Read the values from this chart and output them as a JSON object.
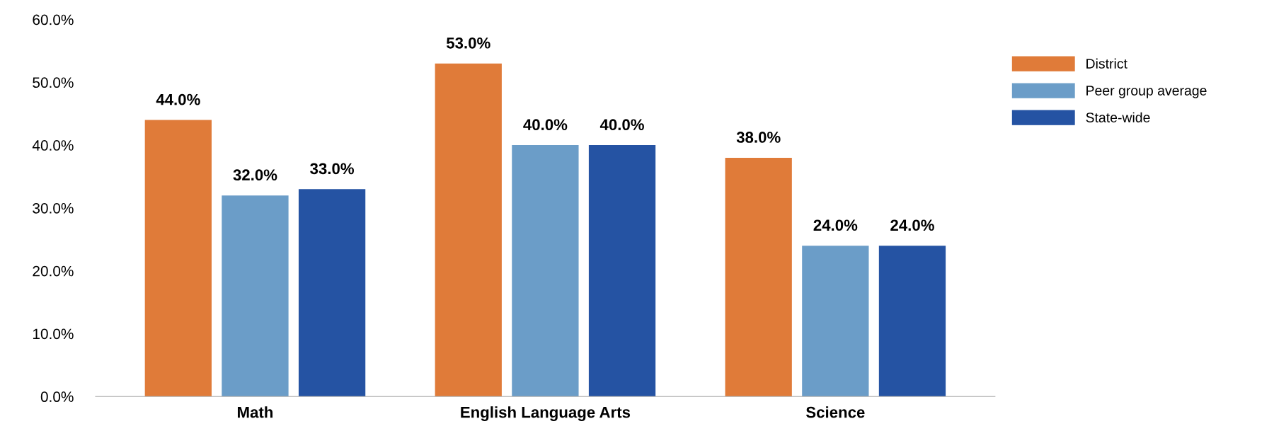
{
  "chart_data": {
    "type": "bar",
    "categories": [
      "Math",
      "English Language Arts",
      "Science"
    ],
    "series": [
      {
        "name": "District",
        "color": "#e07b39",
        "values": [
          44,
          53,
          38
        ],
        "value_labels": [
          "44.0%",
          "53.0%",
          "38.0%"
        ]
      },
      {
        "name": "Peer group average",
        "color": "#6b9dc8",
        "values": [
          32,
          40,
          24
        ],
        "value_labels": [
          "32.0%",
          "40.0%",
          "24.0%"
        ]
      },
      {
        "name": "State-wide",
        "color": "#2553a3",
        "values": [
          33,
          40,
          24
        ],
        "value_labels": [
          "33.0%",
          "40.0%",
          "24.0%"
        ]
      }
    ],
    "ylim": [
      0,
      60
    ],
    "yticks": [
      {
        "value": 0,
        "label": "0.0%"
      },
      {
        "value": 10,
        "label": "10.0%"
      },
      {
        "value": 20,
        "label": "20.0%"
      },
      {
        "value": 30,
        "label": "30.0%"
      },
      {
        "value": 40,
        "label": "40.0%"
      },
      {
        "value": 50,
        "label": "50.0%"
      },
      {
        "value": 60,
        "label": "60.0%"
      }
    ],
    "grid": false,
    "legend": "top right"
  }
}
